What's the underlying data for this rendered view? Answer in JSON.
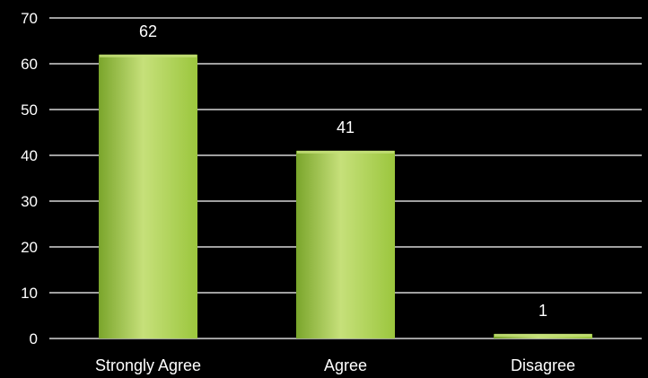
{
  "chart_data": {
    "type": "bar",
    "categories": [
      "Strongly Agree",
      "Agree",
      "Disagree"
    ],
    "values": [
      62,
      41,
      1
    ],
    "data_labels": [
      "62",
      "41",
      "1"
    ],
    "ylim": [
      0,
      70
    ],
    "yticks": [
      0,
      10,
      20,
      30,
      40,
      50,
      60,
      70
    ],
    "ytick_labels": [
      "0",
      "10",
      "20",
      "30",
      "40",
      "50",
      "60",
      "70"
    ],
    "grid": true,
    "legend": "none",
    "colors": {
      "background": "#000000",
      "bar": "#9bc63d",
      "bar_light": "#c6e07a",
      "bar_dark": "#7aa52b",
      "gridline": "#ffffff",
      "text": "#ffffff"
    }
  }
}
